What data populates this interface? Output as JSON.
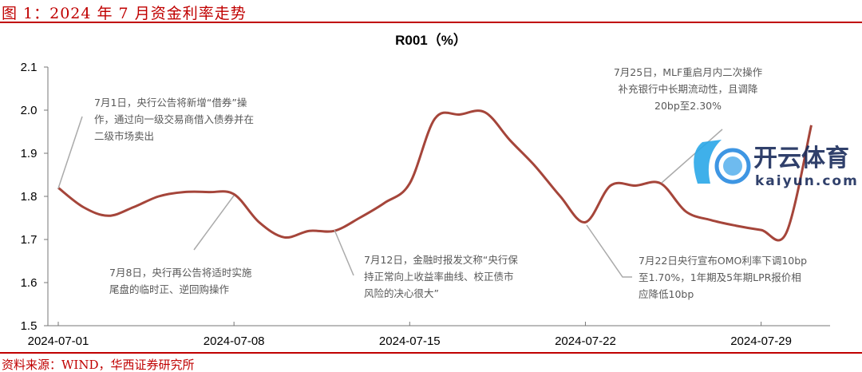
{
  "figure_title": "图 1：2024 年 7 月资金利率走势",
  "source": "资料来源：WIND，华西证券研究所",
  "watermark": {
    "text": "开云体育",
    "sub": "kaiyun.com"
  },
  "chart_data": {
    "type": "line",
    "title": "R001（%）",
    "xlabel": "",
    "ylabel": "",
    "ylim": [
      1.5,
      2.1
    ],
    "yticks": [
      "1.5",
      "1.6",
      "1.7",
      "1.8",
      "1.9",
      "2.0",
      "2.1"
    ],
    "xticks": [
      "2024-07-01",
      "2024-07-08",
      "2024-07-15",
      "2024-07-22",
      "2024-07-29"
    ],
    "color": "#a5453a",
    "series": [
      {
        "name": "R001",
        "x": [
          1,
          2,
          3,
          4,
          5,
          6,
          7,
          8,
          9,
          10,
          11,
          12,
          13,
          14,
          15,
          16,
          17,
          18,
          19,
          20,
          21,
          22,
          23,
          24,
          25,
          26,
          27,
          28,
          29,
          30,
          31
        ],
        "values": [
          1.82,
          1.775,
          1.755,
          1.775,
          1.8,
          1.81,
          1.81,
          1.805,
          1.74,
          1.705,
          1.72,
          1.72,
          1.75,
          1.785,
          1.83,
          1.98,
          1.99,
          1.995,
          1.93,
          1.87,
          1.8,
          1.74,
          1.825,
          1.825,
          1.83,
          1.765,
          1.745,
          1.732,
          1.722,
          1.715,
          1.965
        ]
      }
    ],
    "annotations": [
      {
        "day": 1,
        "lines": [
          "7月1日，央行公告将新增“借券”操",
          "作，通过向一级交易商借入债券并在",
          "二级市场卖出"
        ]
      },
      {
        "day": 8,
        "lines": [
          "7月8日，央行再公告将适时实施",
          "尾盘的临时正、逆回购操作"
        ]
      },
      {
        "day": 12,
        "lines": [
          "7月12日，金融时报发文称“央行保",
          "持正常向上收益率曲线、校正债市",
          "风险的决心很大”"
        ]
      },
      {
        "day": 25,
        "lines": [
          "7月25日，MLF重启月内二次操作",
          "补充银行中长期流动性，且调降",
          "20bp至2.30%"
        ]
      },
      {
        "day": 22,
        "lines": [
          "7月22日央行宣布OMO利率下调10bp",
          "至1.70%，1年期及5年期LPR报价相",
          "应降低10bp"
        ]
      }
    ]
  }
}
